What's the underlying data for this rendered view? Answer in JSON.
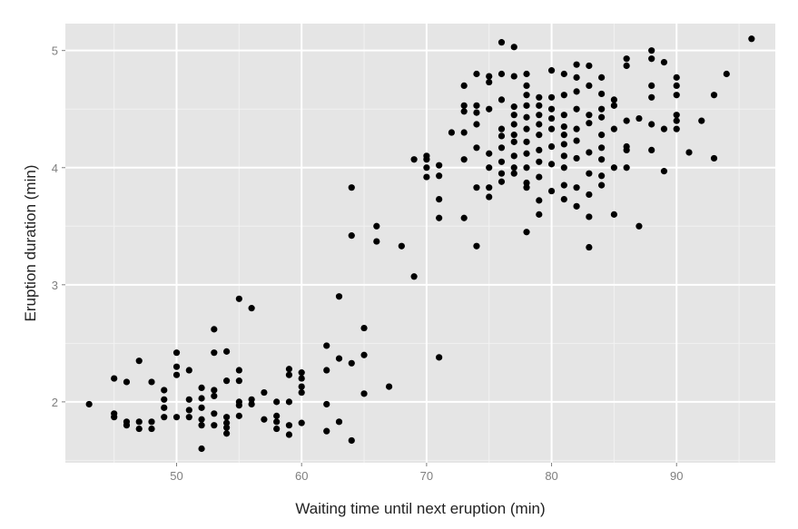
{
  "chart_data": {
    "type": "scatter",
    "title": "",
    "xlabel": "Waiting time until next eruption (min)",
    "ylabel": "Eruption duration (min)",
    "xlim": [
      41.1,
      97.9
    ],
    "ylim": [
      1.48,
      5.23
    ],
    "xticks": [
      50,
      60,
      70,
      80,
      90
    ],
    "yticks": [
      2,
      3,
      4,
      5
    ],
    "xtick_labels": [
      "50",
      "60",
      "70",
      "80",
      "90"
    ],
    "ytick_labels": [
      "2",
      "3",
      "4",
      "5"
    ],
    "grid": true,
    "legend": "none",
    "colors": {
      "panel": "#e5e5e5",
      "grid_major": "#ffffff",
      "grid_minor": "#f2f2f2",
      "point": "#000000"
    },
    "points": [
      [
        43,
        1.98
      ],
      [
        45,
        1.9
      ],
      [
        45,
        1.87
      ],
      [
        45,
        2.2
      ],
      [
        46,
        2.17
      ],
      [
        46,
        1.83
      ],
      [
        46,
        1.8
      ],
      [
        47,
        1.83
      ],
      [
        47,
        1.77
      ],
      [
        47,
        2.35
      ],
      [
        48,
        1.83
      ],
      [
        48,
        1.77
      ],
      [
        48,
        2.17
      ],
      [
        49,
        1.87
      ],
      [
        49,
        1.95
      ],
      [
        49,
        2.02
      ],
      [
        49,
        2.1
      ],
      [
        50,
        1.87
      ],
      [
        50,
        2.23
      ],
      [
        50,
        2.3
      ],
      [
        50,
        2.42
      ],
      [
        51,
        1.87
      ],
      [
        51,
        1.93
      ],
      [
        51,
        2.02
      ],
      [
        51,
        2.27
      ],
      [
        52,
        1.8
      ],
      [
        52,
        1.85
      ],
      [
        52,
        1.95
      ],
      [
        52,
        2.03
      ],
      [
        52,
        2.12
      ],
      [
        52,
        1.6
      ],
      [
        53,
        1.8
      ],
      [
        53,
        1.9
      ],
      [
        53,
        2.05
      ],
      [
        53,
        2.1
      ],
      [
        53,
        2.42
      ],
      [
        53,
        2.62
      ],
      [
        54,
        1.73
      ],
      [
        54,
        1.78
      ],
      [
        54,
        1.82
      ],
      [
        54,
        1.87
      ],
      [
        54,
        2.43
      ],
      [
        54,
        2.18
      ],
      [
        55,
        1.88
      ],
      [
        55,
        1.97
      ],
      [
        55,
        2.0
      ],
      [
        55,
        2.18
      ],
      [
        55,
        2.27
      ],
      [
        55,
        2.88
      ],
      [
        56,
        1.98
      ],
      [
        56,
        2.02
      ],
      [
        56,
        2.8
      ],
      [
        57,
        1.85
      ],
      [
        57,
        2.08
      ],
      [
        58,
        1.77
      ],
      [
        58,
        1.83
      ],
      [
        58,
        1.88
      ],
      [
        58,
        2.0
      ],
      [
        59,
        1.72
      ],
      [
        59,
        1.8
      ],
      [
        59,
        2.0
      ],
      [
        59,
        2.23
      ],
      [
        59,
        2.28
      ],
      [
        60,
        1.82
      ],
      [
        60,
        2.08
      ],
      [
        60,
        2.13
      ],
      [
        60,
        2.2
      ],
      [
        60,
        2.25
      ],
      [
        62,
        1.75
      ],
      [
        62,
        1.98
      ],
      [
        62,
        2.27
      ],
      [
        62,
        2.48
      ],
      [
        63,
        1.83
      ],
      [
        63,
        2.37
      ],
      [
        63,
        2.9
      ],
      [
        64,
        1.67
      ],
      [
        64,
        2.33
      ],
      [
        64,
        3.42
      ],
      [
        64,
        3.83
      ],
      [
        65,
        2.07
      ],
      [
        65,
        2.4
      ],
      [
        65,
        2.63
      ],
      [
        66,
        3.37
      ],
      [
        66,
        3.5
      ],
      [
        67,
        2.13
      ],
      [
        68,
        3.33
      ],
      [
        69,
        3.07
      ],
      [
        69,
        4.07
      ],
      [
        70,
        3.92
      ],
      [
        70,
        4.0
      ],
      [
        70,
        4.07
      ],
      [
        70,
        4.1
      ],
      [
        71,
        2.38
      ],
      [
        71,
        3.57
      ],
      [
        71,
        3.73
      ],
      [
        71,
        3.93
      ],
      [
        71,
        4.02
      ],
      [
        72,
        4.3
      ],
      [
        73,
        3.57
      ],
      [
        73,
        4.07
      ],
      [
        73,
        4.3
      ],
      [
        73,
        4.48
      ],
      [
        73,
        4.53
      ],
      [
        73,
        4.7
      ],
      [
        74,
        3.33
      ],
      [
        74,
        3.83
      ],
      [
        74,
        4.17
      ],
      [
        74,
        4.37
      ],
      [
        74,
        4.47
      ],
      [
        74,
        4.53
      ],
      [
        74,
        4.8
      ],
      [
        75,
        3.75
      ],
      [
        75,
        3.83
      ],
      [
        75,
        4.0
      ],
      [
        75,
        4.12
      ],
      [
        75,
        4.5
      ],
      [
        75,
        4.73
      ],
      [
        75,
        4.78
      ],
      [
        76,
        3.88
      ],
      [
        76,
        3.95
      ],
      [
        76,
        4.05
      ],
      [
        76,
        4.17
      ],
      [
        76,
        4.27
      ],
      [
        76,
        4.33
      ],
      [
        76,
        4.58
      ],
      [
        76,
        4.8
      ],
      [
        76,
        5.07
      ],
      [
        77,
        3.95
      ],
      [
        77,
        4.0
      ],
      [
        77,
        4.1
      ],
      [
        77,
        4.22
      ],
      [
        77,
        4.28
      ],
      [
        77,
        4.37
      ],
      [
        77,
        4.45
      ],
      [
        77,
        4.52
      ],
      [
        77,
        4.78
      ],
      [
        77,
        5.03
      ],
      [
        78,
        3.45
      ],
      [
        78,
        3.83
      ],
      [
        78,
        3.87
      ],
      [
        78,
        4.0
      ],
      [
        78,
        4.12
      ],
      [
        78,
        4.22
      ],
      [
        78,
        4.33
      ],
      [
        78,
        4.43
      ],
      [
        78,
        4.53
      ],
      [
        78,
        4.62
      ],
      [
        78,
        4.7
      ],
      [
        78,
        4.8
      ],
      [
        79,
        3.6
      ],
      [
        79,
        3.72
      ],
      [
        79,
        3.92
      ],
      [
        79,
        4.05
      ],
      [
        79,
        4.15
      ],
      [
        79,
        4.28
      ],
      [
        79,
        4.37
      ],
      [
        79,
        4.45
      ],
      [
        79,
        4.53
      ],
      [
        79,
        4.6
      ],
      [
        80,
        3.8
      ],
      [
        80,
        4.03
      ],
      [
        80,
        4.18
      ],
      [
        80,
        4.33
      ],
      [
        80,
        4.42
      ],
      [
        80,
        4.5
      ],
      [
        80,
        4.6
      ],
      [
        80,
        4.83
      ],
      [
        81,
        3.73
      ],
      [
        81,
        3.85
      ],
      [
        81,
        4.0
      ],
      [
        81,
        4.1
      ],
      [
        81,
        4.2
      ],
      [
        81,
        4.28
      ],
      [
        81,
        4.35
      ],
      [
        81,
        4.45
      ],
      [
        81,
        4.62
      ],
      [
        81,
        4.8
      ],
      [
        82,
        3.67
      ],
      [
        82,
        3.83
      ],
      [
        82,
        4.08
      ],
      [
        82,
        4.23
      ],
      [
        82,
        4.33
      ],
      [
        82,
        4.5
      ],
      [
        82,
        4.65
      ],
      [
        82,
        4.77
      ],
      [
        82,
        4.88
      ],
      [
        83,
        3.32
      ],
      [
        83,
        3.58
      ],
      [
        83,
        3.77
      ],
      [
        83,
        3.95
      ],
      [
        83,
        4.13
      ],
      [
        83,
        4.38
      ],
      [
        83,
        4.45
      ],
      [
        83,
        4.7
      ],
      [
        83,
        4.87
      ],
      [
        84,
        3.85
      ],
      [
        84,
        3.93
      ],
      [
        84,
        4.07
      ],
      [
        84,
        4.17
      ],
      [
        84,
        4.28
      ],
      [
        84,
        4.43
      ],
      [
        84,
        4.5
      ],
      [
        84,
        4.63
      ],
      [
        84,
        4.77
      ],
      [
        85,
        3.6
      ],
      [
        85,
        4.0
      ],
      [
        85,
        4.33
      ],
      [
        85,
        4.53
      ],
      [
        85,
        4.58
      ],
      [
        86,
        4.0
      ],
      [
        86,
        4.15
      ],
      [
        86,
        4.18
      ],
      [
        86,
        4.4
      ],
      [
        86,
        4.87
      ],
      [
        86,
        4.93
      ],
      [
        87,
        3.5
      ],
      [
        87,
        4.42
      ],
      [
        88,
        4.15
      ],
      [
        88,
        4.37
      ],
      [
        88,
        4.6
      ],
      [
        88,
        4.7
      ],
      [
        88,
        4.93
      ],
      [
        88,
        5.0
      ],
      [
        89,
        3.97
      ],
      [
        89,
        4.33
      ],
      [
        89,
        4.9
      ],
      [
        90,
        4.33
      ],
      [
        90,
        4.4
      ],
      [
        90,
        4.45
      ],
      [
        90,
        4.62
      ],
      [
        90,
        4.7
      ],
      [
        90,
        4.77
      ],
      [
        91,
        4.13
      ],
      [
        92,
        4.4
      ],
      [
        93,
        4.08
      ],
      [
        93,
        4.62
      ],
      [
        94,
        4.8
      ],
      [
        96,
        5.1
      ]
    ]
  }
}
